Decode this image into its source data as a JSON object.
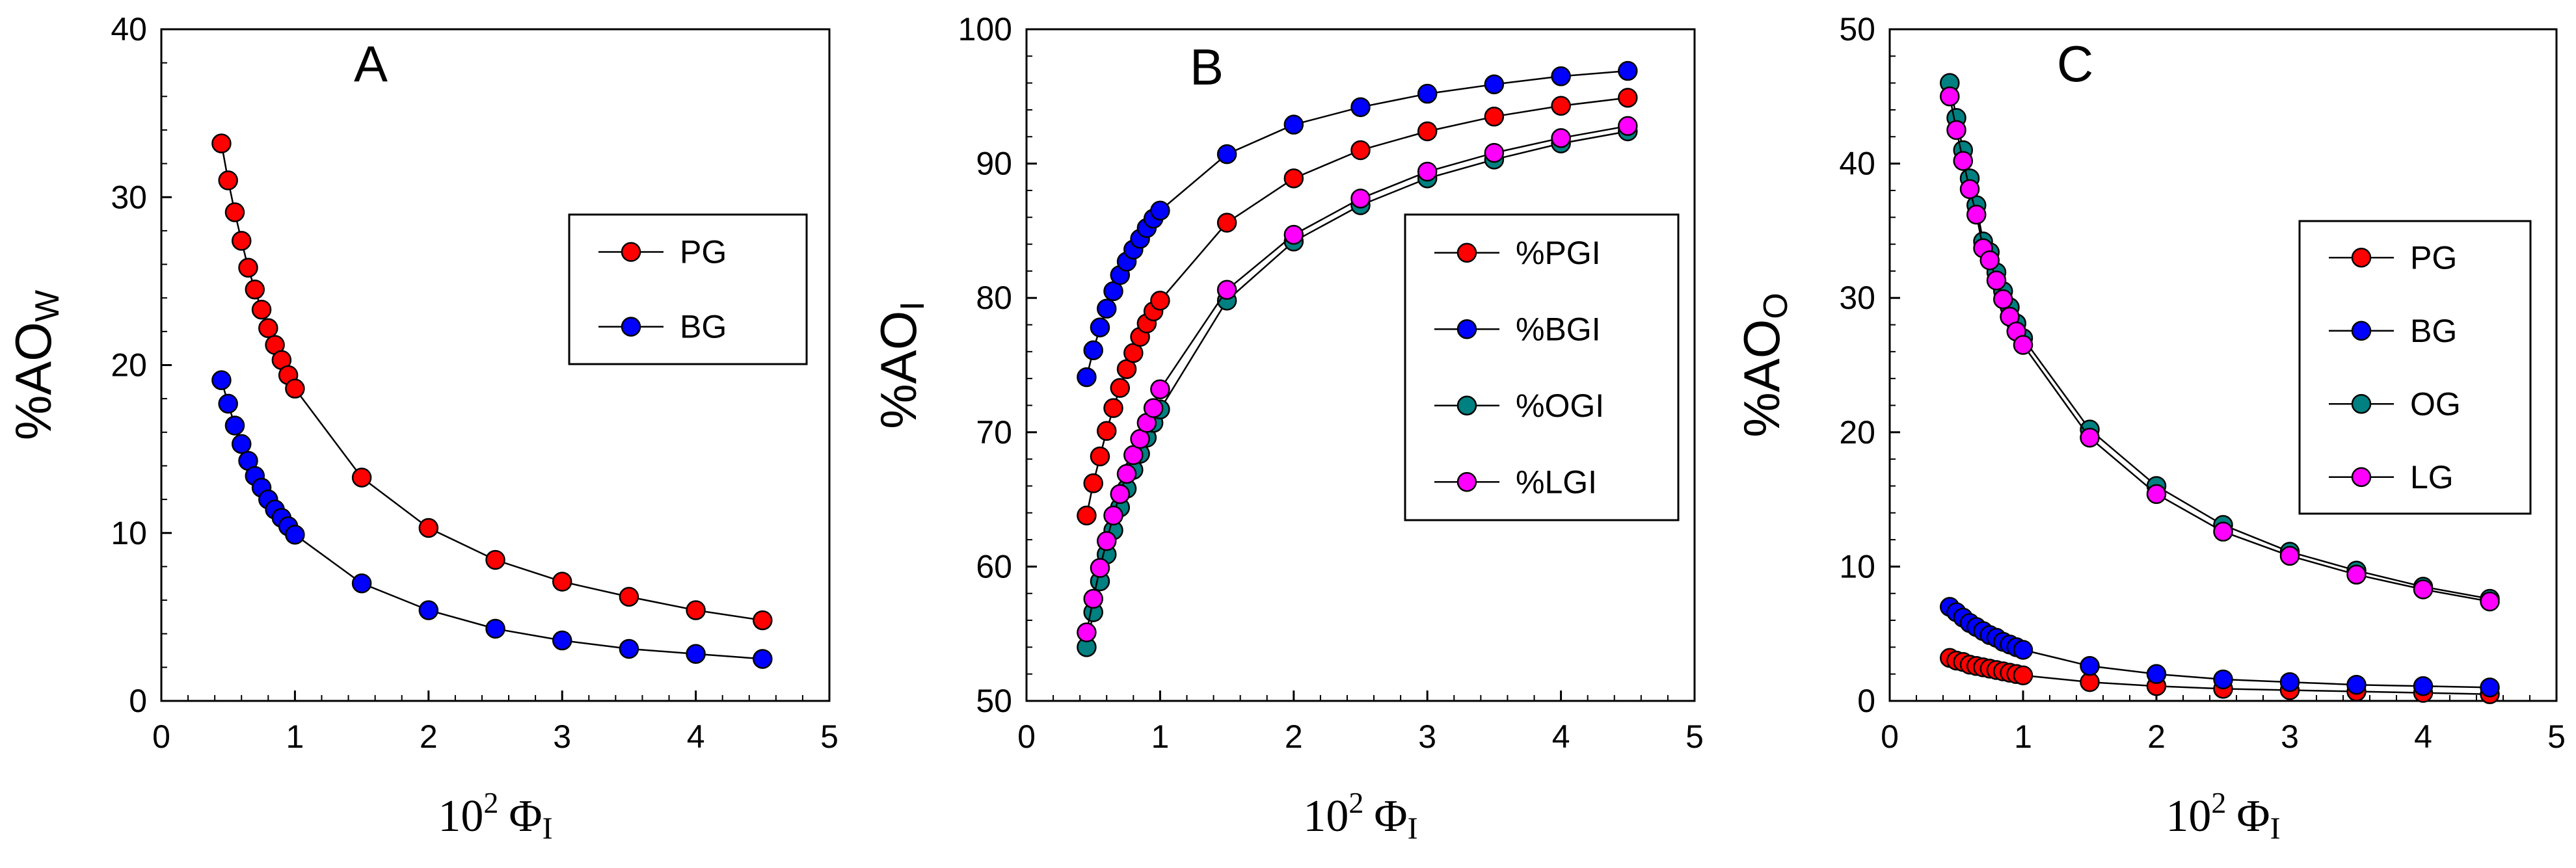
{
  "chart_data": [
    {
      "type": "scatter",
      "panel_label": "A",
      "xlabel": {
        "base": "10",
        "exponent": "2",
        "symbol": "Φ",
        "subscript": "I"
      },
      "ylabel": {
        "base": "%AO",
        "subscript": "W"
      },
      "xlim": [
        0,
        5
      ],
      "ylim": [
        0,
        40
      ],
      "x_ticks": [
        0,
        1,
        2,
        3,
        4,
        5
      ],
      "y_ticks": [
        0,
        10,
        20,
        30,
        40
      ],
      "legend": {
        "position": "top-right"
      },
      "series": [
        {
          "name": "PG",
          "color": "#ff0000",
          "x": [
            0.45,
            0.5,
            0.55,
            0.6,
            0.65,
            0.7,
            0.75,
            0.8,
            0.85,
            0.9,
            0.95,
            1.0,
            1.5,
            2.0,
            2.5,
            3.0,
            3.5,
            4.0,
            4.5
          ],
          "y": [
            33.2,
            31.0,
            29.1,
            27.4,
            25.8,
            24.5,
            23.3,
            22.2,
            21.2,
            20.3,
            19.4,
            18.6,
            13.3,
            10.3,
            8.4,
            7.1,
            6.2,
            5.4,
            4.8
          ]
        },
        {
          "name": "BG",
          "color": "#0000ff",
          "x": [
            0.45,
            0.5,
            0.55,
            0.6,
            0.65,
            0.7,
            0.75,
            0.8,
            0.85,
            0.9,
            0.95,
            1.0,
            1.5,
            2.0,
            2.5,
            3.0,
            3.5,
            4.0,
            4.5
          ],
          "y": [
            19.1,
            17.7,
            16.4,
            15.3,
            14.3,
            13.4,
            12.7,
            12.0,
            11.4,
            10.9,
            10.4,
            9.9,
            7.0,
            5.4,
            4.3,
            3.6,
            3.1,
            2.8,
            2.5
          ]
        }
      ]
    },
    {
      "type": "scatter",
      "panel_label": "B",
      "xlabel": {
        "base": "10",
        "exponent": "2",
        "symbol": "Φ",
        "subscript": "I"
      },
      "ylabel": {
        "base": "%AO",
        "subscript": "I"
      },
      "xlim": [
        0,
        5
      ],
      "ylim": [
        50,
        100
      ],
      "x_ticks": [
        0,
        1,
        2,
        3,
        4,
        5
      ],
      "y_ticks": [
        50,
        60,
        70,
        80,
        90,
        100
      ],
      "legend": {
        "position": "center-right"
      },
      "series": [
        {
          "name": "%PGI",
          "color": "#ff0000",
          "x": [
            0.45,
            0.5,
            0.55,
            0.6,
            0.65,
            0.7,
            0.75,
            0.8,
            0.85,
            0.9,
            0.95,
            1.0,
            1.5,
            2.0,
            2.5,
            3.0,
            3.5,
            4.0,
            4.5
          ],
          "y": [
            63.8,
            66.2,
            68.2,
            70.1,
            71.8,
            73.3,
            74.7,
            75.9,
            77.1,
            78.1,
            79.0,
            79.8,
            85.6,
            88.9,
            91.0,
            92.4,
            93.5,
            94.3,
            94.9
          ]
        },
        {
          "name": "%BGI",
          "color": "#0000ff",
          "x": [
            0.45,
            0.5,
            0.55,
            0.6,
            0.65,
            0.7,
            0.75,
            0.8,
            0.85,
            0.9,
            0.95,
            1.0,
            1.5,
            2.0,
            2.5,
            3.0,
            3.5,
            4.0,
            4.5
          ],
          "y": [
            74.1,
            76.1,
            77.8,
            79.2,
            80.5,
            81.7,
            82.7,
            83.6,
            84.4,
            85.2,
            85.9,
            86.5,
            90.7,
            92.9,
            94.2,
            95.2,
            95.9,
            96.5,
            96.9
          ]
        },
        {
          "name": "%OGI",
          "color": "#008080",
          "x": [
            0.45,
            0.5,
            0.55,
            0.6,
            0.65,
            0.7,
            0.75,
            0.8,
            0.85,
            0.9,
            0.95,
            1.0,
            1.5,
            2.0,
            2.5,
            3.0,
            3.5,
            4.0,
            4.5
          ],
          "y": [
            54.0,
            56.6,
            58.9,
            60.9,
            62.7,
            64.4,
            65.8,
            67.2,
            68.4,
            69.6,
            70.7,
            71.7,
            79.8,
            84.2,
            86.9,
            88.9,
            90.3,
            91.5,
            92.4
          ]
        },
        {
          "name": "%LGI",
          "color": "#ff00ff",
          "x": [
            0.45,
            0.5,
            0.55,
            0.6,
            0.65,
            0.7,
            0.75,
            0.8,
            0.85,
            0.9,
            0.95,
            1.0,
            1.5,
            2.0,
            2.5,
            3.0,
            3.5,
            4.0,
            4.5
          ],
          "y": [
            55.1,
            57.6,
            59.9,
            61.9,
            63.8,
            65.4,
            66.9,
            68.3,
            69.5,
            70.7,
            71.8,
            73.2,
            80.6,
            84.7,
            87.4,
            89.4,
            90.8,
            91.9,
            92.8
          ]
        }
      ]
    },
    {
      "type": "scatter",
      "panel_label": "C",
      "xlabel": {
        "base": "10",
        "exponent": "2",
        "symbol": "Φ",
        "subscript": "I"
      },
      "ylabel": {
        "base": "%AO",
        "subscript": "O"
      },
      "xlim": [
        0,
        5
      ],
      "ylim": [
        0,
        50
      ],
      "x_ticks": [
        0,
        1,
        2,
        3,
        4,
        5
      ],
      "y_ticks": [
        0,
        10,
        20,
        30,
        40,
        50
      ],
      "legend": {
        "position": "center-right"
      },
      "series": [
        {
          "name": "PG",
          "color": "#ff0000",
          "x": [
            0.45,
            0.5,
            0.55,
            0.6,
            0.65,
            0.7,
            0.75,
            0.8,
            0.85,
            0.9,
            0.95,
            1.0,
            1.5,
            2.0,
            2.5,
            3.0,
            3.5,
            4.0,
            4.5
          ],
          "y": [
            3.2,
            3.0,
            2.9,
            2.7,
            2.6,
            2.5,
            2.4,
            2.3,
            2.2,
            2.1,
            2.0,
            1.9,
            1.4,
            1.1,
            0.9,
            0.8,
            0.7,
            0.6,
            0.5
          ]
        },
        {
          "name": "BG",
          "color": "#0000ff",
          "x": [
            0.45,
            0.5,
            0.55,
            0.6,
            0.65,
            0.7,
            0.75,
            0.8,
            0.85,
            0.9,
            0.95,
            1.0,
            1.5,
            2.0,
            2.5,
            3.0,
            3.5,
            4.0,
            4.5
          ],
          "y": [
            7.0,
            6.6,
            6.2,
            5.8,
            5.5,
            5.2,
            4.9,
            4.7,
            4.4,
            4.2,
            4.0,
            3.8,
            2.6,
            2.0,
            1.6,
            1.4,
            1.2,
            1.1,
            1.0
          ]
        },
        {
          "name": "OG",
          "color": "#008080",
          "x": [
            0.45,
            0.5,
            0.55,
            0.6,
            0.65,
            0.7,
            0.75,
            0.8,
            0.85,
            0.9,
            0.95,
            1.0,
            1.5,
            2.0,
            2.5,
            3.0,
            3.5,
            4.0,
            4.5
          ],
          "y": [
            46.0,
            43.4,
            41.0,
            38.9,
            36.9,
            34.2,
            33.4,
            31.9,
            30.5,
            29.3,
            28.1,
            27.0,
            20.2,
            16.0,
            13.1,
            11.1,
            9.7,
            8.5,
            7.6
          ]
        },
        {
          "name": "LG",
          "color": "#ff00ff",
          "x": [
            0.45,
            0.5,
            0.55,
            0.6,
            0.65,
            0.7,
            0.75,
            0.8,
            0.85,
            0.9,
            0.95,
            1.0,
            1.5,
            2.0,
            2.5,
            3.0,
            3.5,
            4.0,
            4.5
          ],
          "y": [
            45.0,
            42.5,
            40.2,
            38.1,
            36.2,
            33.7,
            32.8,
            31.3,
            29.9,
            28.6,
            27.5,
            26.5,
            19.6,
            15.4,
            12.6,
            10.8,
            9.4,
            8.3,
            7.4
          ]
        }
      ]
    }
  ]
}
